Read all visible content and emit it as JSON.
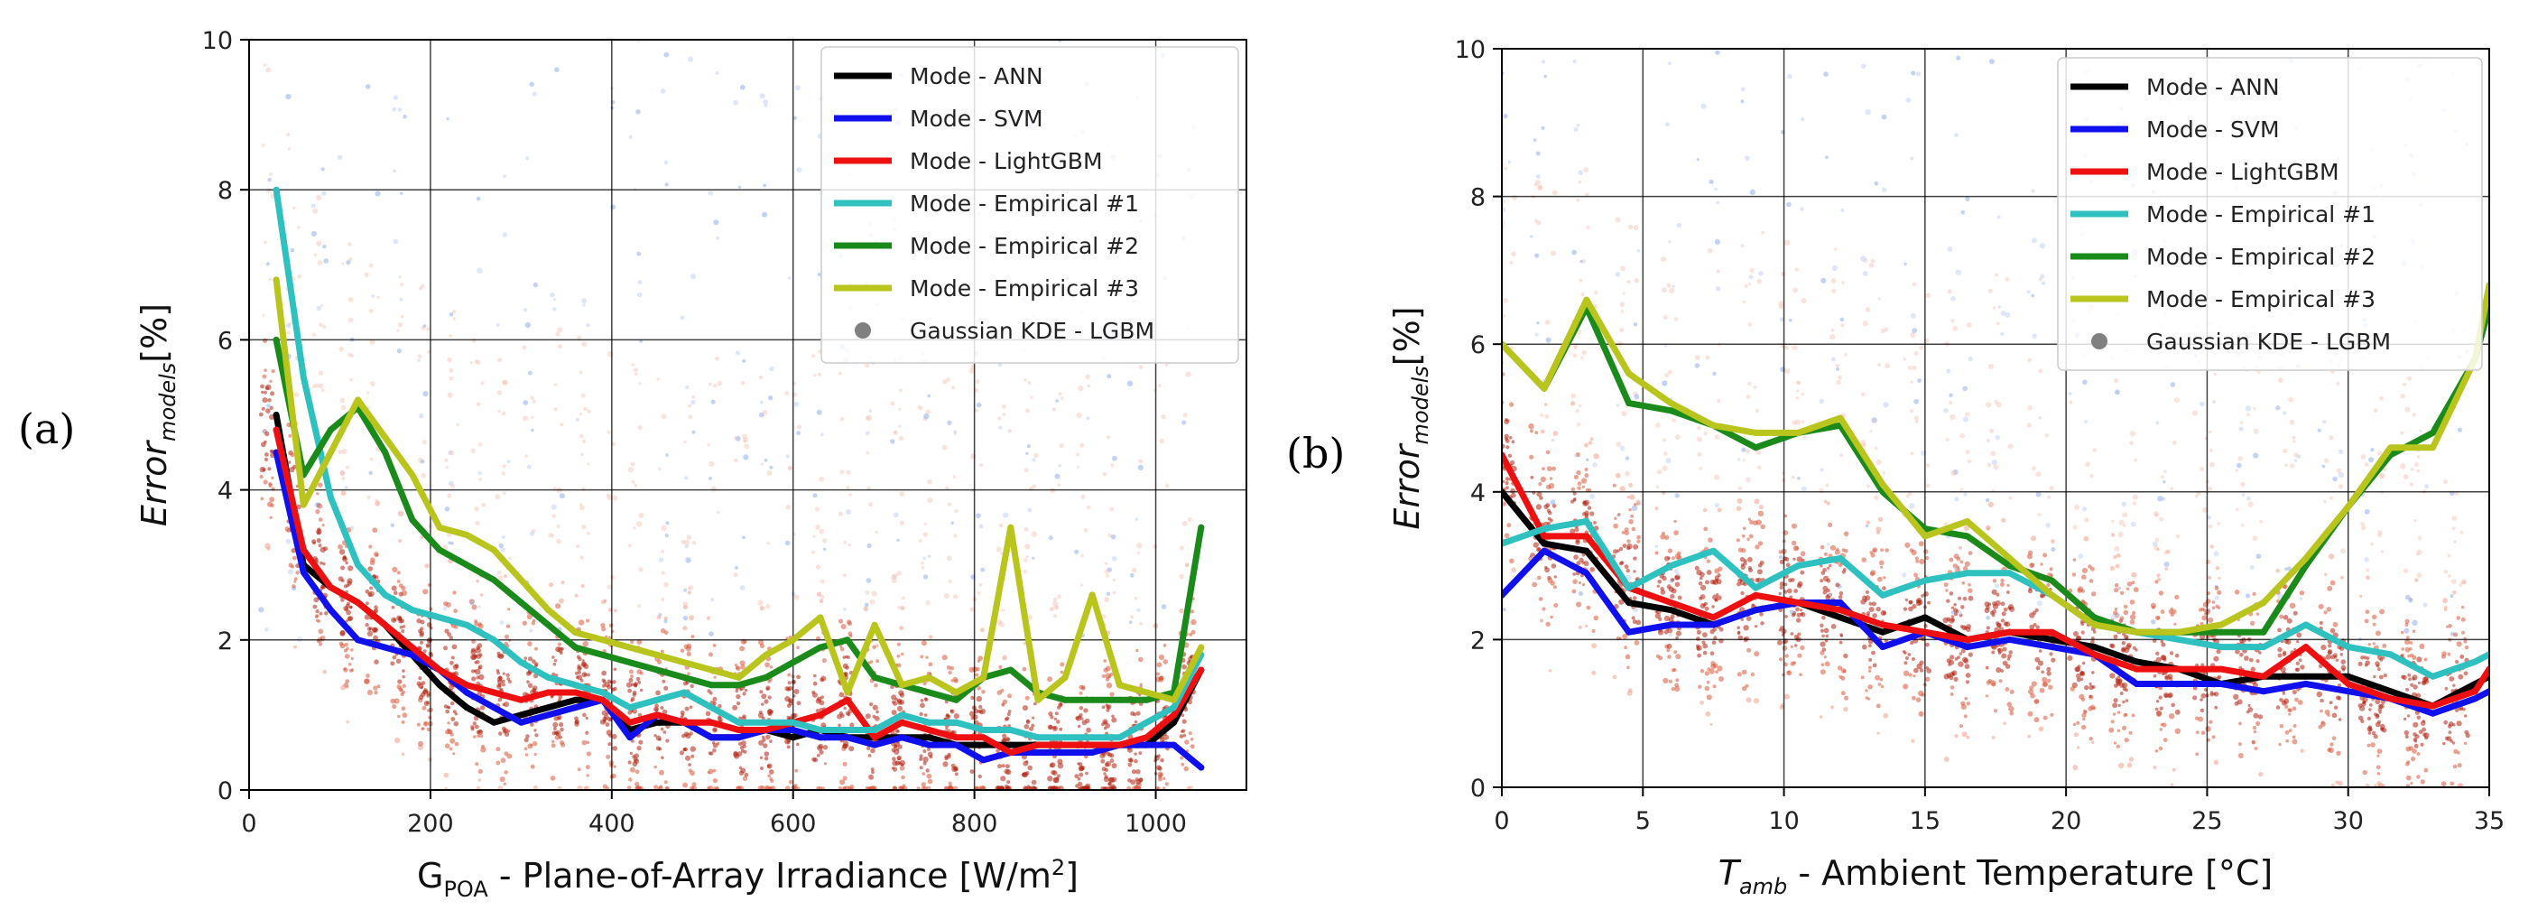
{
  "figure": {
    "panel_a_label": "(a)",
    "panel_b_label": "(b)",
    "colors": {
      "ANN": "#000000",
      "SVM": "#1010ee",
      "LightGBM": "#ee1010",
      "Empirical1": "#2fc0c0",
      "Empirical2": "#1a8a1a",
      "Empirical3": "#b9c51c",
      "KDE": "#808080"
    }
  },
  "chart_data": [
    {
      "type": "line",
      "panel": "(a)",
      "xlabel_main": "G",
      "xlabel_sub": "POA",
      "xlabel_rest": " - Plane-of-Array Irradiance [W/m",
      "xlabel_sup": "2",
      "xlabel_end": "]",
      "ylabel_main": "Error",
      "ylabel_sub": "models",
      "ylabel_rest": "[%]",
      "xlim": [
        0,
        1100
      ],
      "ylim": [
        0,
        10
      ],
      "xticks": [
        0,
        200,
        400,
        600,
        800,
        1000
      ],
      "yticks": [
        0,
        2,
        4,
        6,
        8,
        10
      ],
      "grid": true,
      "legend_position": "top-right",
      "series": [
        {
          "name": "Mode - ANN",
          "color_key": "ANN",
          "x": [
            30,
            60,
            90,
            120,
            150,
            180,
            210,
            240,
            270,
            300,
            330,
            360,
            390,
            420,
            450,
            480,
            510,
            540,
            570,
            600,
            630,
            660,
            690,
            720,
            750,
            780,
            810,
            840,
            870,
            900,
            930,
            960,
            990,
            1020,
            1050
          ],
          "values": [
            5.0,
            3.0,
            2.7,
            2.5,
            2.2,
            1.8,
            1.4,
            1.1,
            0.9,
            1.0,
            1.1,
            1.2,
            1.2,
            0.8,
            0.9,
            0.9,
            0.7,
            0.7,
            0.8,
            0.7,
            0.8,
            0.7,
            0.7,
            0.7,
            0.7,
            0.6,
            0.6,
            0.6,
            0.6,
            0.6,
            0.6,
            0.6,
            0.6,
            0.9,
            1.6
          ]
        },
        {
          "name": "Mode - SVM",
          "color_key": "SVM",
          "x": [
            30,
            60,
            90,
            120,
            150,
            180,
            210,
            240,
            270,
            300,
            330,
            360,
            390,
            420,
            450,
            480,
            510,
            540,
            570,
            600,
            630,
            660,
            690,
            720,
            750,
            780,
            810,
            840,
            870,
            900,
            930,
            960,
            990,
            1020,
            1050
          ],
          "values": [
            4.5,
            2.9,
            2.4,
            2.0,
            1.9,
            1.8,
            1.6,
            1.3,
            1.1,
            0.9,
            1.0,
            1.1,
            1.2,
            0.7,
            1.0,
            0.9,
            0.7,
            0.7,
            0.8,
            0.8,
            0.7,
            0.7,
            0.6,
            0.7,
            0.6,
            0.6,
            0.4,
            0.5,
            0.5,
            0.5,
            0.5,
            0.6,
            0.6,
            0.6,
            0.3
          ]
        },
        {
          "name": "Mode - LightGBM",
          "color_key": "LightGBM",
          "x": [
            30,
            60,
            90,
            120,
            150,
            180,
            210,
            240,
            270,
            300,
            330,
            360,
            390,
            420,
            450,
            480,
            510,
            540,
            570,
            600,
            630,
            660,
            690,
            720,
            750,
            780,
            810,
            840,
            870,
            900,
            930,
            960,
            990,
            1020,
            1050
          ],
          "values": [
            4.8,
            3.2,
            2.7,
            2.5,
            2.2,
            1.9,
            1.6,
            1.4,
            1.3,
            1.2,
            1.3,
            1.3,
            1.2,
            0.9,
            1.0,
            0.9,
            0.9,
            0.8,
            0.8,
            0.9,
            1.0,
            1.2,
            0.7,
            0.9,
            0.8,
            0.7,
            0.7,
            0.5,
            0.6,
            0.6,
            0.6,
            0.6,
            0.7,
            1.0,
            1.6
          ]
        },
        {
          "name": "Mode - Empirical #1",
          "color_key": "Empirical1",
          "x": [
            30,
            60,
            90,
            120,
            150,
            180,
            210,
            240,
            270,
            300,
            330,
            360,
            390,
            420,
            450,
            480,
            510,
            540,
            570,
            600,
            630,
            660,
            690,
            720,
            750,
            780,
            810,
            840,
            870,
            900,
            930,
            960,
            990,
            1020,
            1050
          ],
          "values": [
            8.0,
            5.5,
            3.9,
            3.0,
            2.6,
            2.4,
            2.3,
            2.2,
            2.0,
            1.7,
            1.5,
            1.4,
            1.3,
            1.1,
            1.2,
            1.3,
            1.1,
            0.9,
            0.9,
            0.9,
            0.8,
            0.8,
            0.8,
            1.0,
            0.9,
            0.9,
            0.8,
            0.8,
            0.7,
            0.7,
            0.7,
            0.7,
            0.9,
            1.1,
            1.8
          ]
        },
        {
          "name": "Mode - Empirical #2",
          "color_key": "Empirical2",
          "x": [
            30,
            60,
            90,
            120,
            150,
            180,
            210,
            240,
            270,
            300,
            330,
            360,
            390,
            420,
            450,
            480,
            510,
            540,
            570,
            600,
            630,
            660,
            690,
            720,
            750,
            780,
            810,
            840,
            870,
            900,
            930,
            960,
            990,
            1020,
            1050
          ],
          "values": [
            6.0,
            4.2,
            4.8,
            5.1,
            4.5,
            3.6,
            3.2,
            3.0,
            2.8,
            2.5,
            2.2,
            1.9,
            1.8,
            1.7,
            1.6,
            1.5,
            1.4,
            1.4,
            1.5,
            1.7,
            1.9,
            2.0,
            1.5,
            1.4,
            1.3,
            1.2,
            1.5,
            1.6,
            1.3,
            1.2,
            1.2,
            1.2,
            1.2,
            1.3,
            3.5
          ]
        },
        {
          "name": "Mode - Empirical #3",
          "color_key": "Empirical3",
          "x": [
            30,
            60,
            90,
            120,
            150,
            180,
            210,
            240,
            270,
            300,
            330,
            360,
            390,
            420,
            450,
            480,
            510,
            540,
            570,
            600,
            630,
            660,
            690,
            720,
            750,
            780,
            810,
            840,
            870,
            900,
            930,
            960,
            990,
            1020,
            1050
          ],
          "values": [
            6.8,
            3.8,
            4.5,
            5.2,
            4.7,
            4.2,
            3.5,
            3.4,
            3.2,
            2.8,
            2.4,
            2.1,
            2.0,
            1.9,
            1.8,
            1.7,
            1.6,
            1.5,
            1.8,
            2.0,
            2.3,
            1.3,
            2.2,
            1.4,
            1.5,
            1.3,
            1.5,
            3.5,
            1.2,
            1.5,
            2.6,
            1.4,
            1.3,
            1.2,
            1.9
          ]
        }
      ],
      "kde_legend": "Gaussian KDE - LGBM"
    },
    {
      "type": "line",
      "panel": "(b)",
      "xlabel_main": "T",
      "xlabel_sub": "amb",
      "xlabel_rest": " - Ambient Temperature [°C]",
      "ylabel_main": "Error",
      "ylabel_sub": "models",
      "ylabel_rest": "[%]",
      "xlim": [
        0,
        35
      ],
      "ylim": [
        0,
        10
      ],
      "xticks": [
        0,
        5,
        10,
        15,
        20,
        25,
        30,
        35
      ],
      "yticks": [
        0,
        2,
        4,
        6,
        8,
        10
      ],
      "grid": true,
      "legend_position": "top-right",
      "series": [
        {
          "name": "Mode - ANN",
          "color_key": "ANN",
          "x": [
            0,
            1.5,
            3,
            4.5,
            6,
            7.5,
            9,
            10.5,
            12,
            13.5,
            15,
            16.5,
            18,
            19.5,
            21,
            22.5,
            24,
            25.5,
            27,
            28.5,
            30,
            31.5,
            33,
            34.5,
            35
          ],
          "values": [
            4.0,
            3.3,
            3.2,
            2.5,
            2.4,
            2.2,
            2.4,
            2.5,
            2.3,
            2.1,
            2.3,
            2.0,
            2.1,
            2.0,
            1.9,
            1.7,
            1.6,
            1.4,
            1.5,
            1.5,
            1.5,
            1.3,
            1.1,
            1.4,
            1.5
          ]
        },
        {
          "name": "Mode - SVM",
          "color_key": "SVM",
          "x": [
            0,
            1.5,
            3,
            4.5,
            6,
            7.5,
            9,
            10.5,
            12,
            13.5,
            15,
            16.5,
            18,
            19.5,
            21,
            22.5,
            24,
            25.5,
            27,
            28.5,
            30,
            31.5,
            33,
            34.5,
            35
          ],
          "values": [
            2.6,
            3.2,
            2.9,
            2.1,
            2.2,
            2.2,
            2.4,
            2.5,
            2.5,
            1.9,
            2.1,
            1.9,
            2.0,
            1.9,
            1.8,
            1.4,
            1.4,
            1.4,
            1.3,
            1.4,
            1.3,
            1.2,
            1.0,
            1.2,
            1.3
          ]
        },
        {
          "name": "Mode - LightGBM",
          "color_key": "LightGBM",
          "x": [
            0,
            1.5,
            3,
            4.5,
            6,
            7.5,
            9,
            10.5,
            12,
            13.5,
            15,
            16.5,
            18,
            19.5,
            21,
            22.5,
            24,
            25.5,
            27,
            28.5,
            30,
            31.5,
            33,
            34.5,
            35
          ],
          "values": [
            4.5,
            3.4,
            3.4,
            2.7,
            2.5,
            2.3,
            2.6,
            2.5,
            2.4,
            2.2,
            2.1,
            2.0,
            2.1,
            2.1,
            1.8,
            1.6,
            1.6,
            1.6,
            1.5,
            1.9,
            1.4,
            1.2,
            1.1,
            1.3,
            1.6
          ]
        },
        {
          "name": "Mode - Empirical #1",
          "color_key": "Empirical1",
          "x": [
            0,
            1.5,
            3,
            4.5,
            6,
            7.5,
            9,
            10.5,
            12,
            13.5,
            15,
            16.5,
            18,
            19.5,
            21,
            22.5,
            24,
            25.5,
            27,
            28.5,
            30,
            31.5,
            33,
            34.5,
            35
          ],
          "values": [
            3.3,
            3.5,
            3.6,
            2.7,
            3.0,
            3.2,
            2.7,
            3.0,
            3.1,
            2.6,
            2.8,
            2.9,
            2.9,
            2.6,
            2.2,
            2.1,
            2.0,
            1.9,
            1.9,
            2.2,
            1.9,
            1.8,
            1.5,
            1.7,
            1.8
          ]
        },
        {
          "name": "Mode - Empirical #2",
          "color_key": "Empirical2",
          "x": [
            0,
            1.5,
            3,
            4.5,
            6,
            7.5,
            9,
            10.5,
            12,
            13.5,
            15,
            16.5,
            18,
            19.5,
            21,
            22.5,
            24,
            25.5,
            27,
            28.5,
            30,
            31.5,
            33,
            34.5,
            35
          ],
          "values": [
            6.0,
            5.4,
            6.5,
            5.2,
            5.1,
            4.9,
            4.6,
            4.8,
            4.9,
            4.0,
            3.5,
            3.4,
            3.0,
            2.8,
            2.3,
            2.1,
            2.1,
            2.1,
            2.1,
            3.0,
            3.8,
            4.5,
            4.8,
            5.8,
            6.5
          ]
        },
        {
          "name": "Mode - Empirical #3",
          "color_key": "Empirical3",
          "x": [
            0,
            1.5,
            3,
            4.5,
            6,
            7.5,
            9,
            10.5,
            12,
            13.5,
            15,
            16.5,
            18,
            19.5,
            21,
            22.5,
            24,
            25.5,
            27,
            28.5,
            30,
            31.5,
            33,
            34.5,
            35
          ],
          "values": [
            6.0,
            5.4,
            6.6,
            5.6,
            5.2,
            4.9,
            4.8,
            4.8,
            5.0,
            4.1,
            3.4,
            3.6,
            3.1,
            2.6,
            2.2,
            2.1,
            2.1,
            2.2,
            2.5,
            3.1,
            3.8,
            4.6,
            4.6,
            5.8,
            6.8
          ]
        }
      ],
      "kde_legend": "Gaussian KDE - LGBM"
    }
  ]
}
